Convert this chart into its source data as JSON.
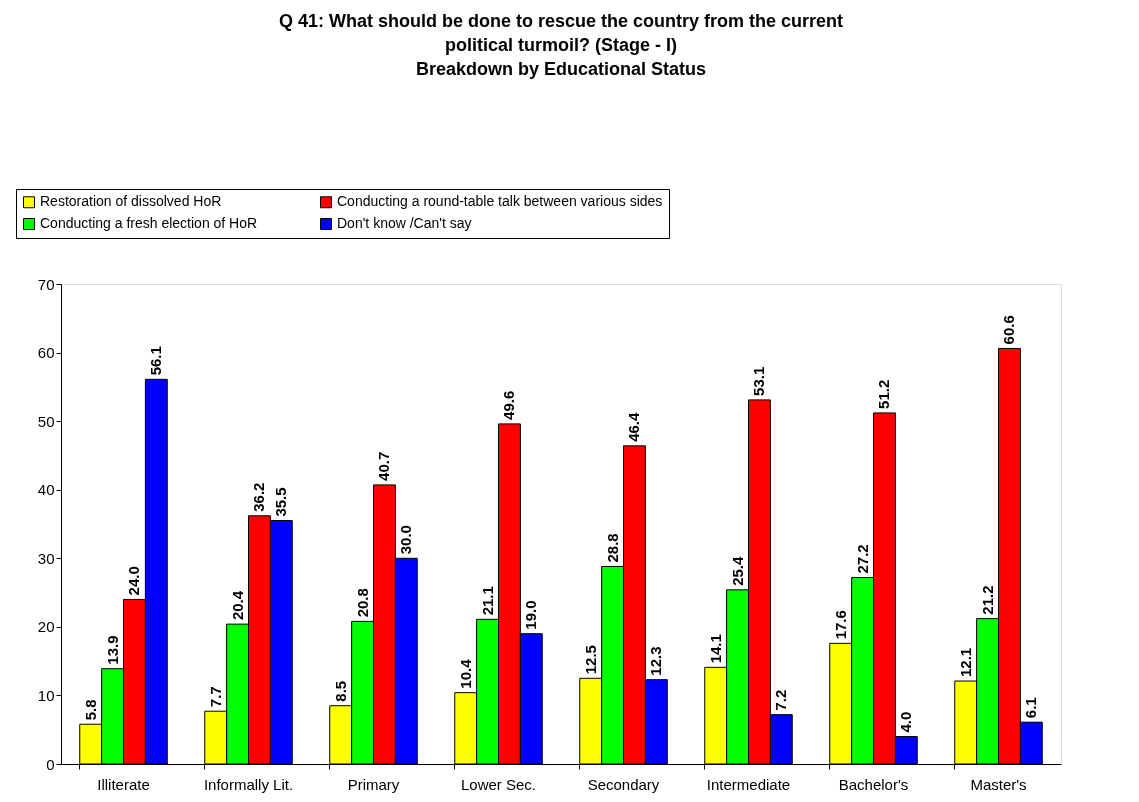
{
  "chart_data": {
    "type": "bar",
    "title": [
      "Q 41: What should be done to rescue the country from the current",
      "political turmoil? (Stage - I)",
      "Breakdown by Educational Status"
    ],
    "categories": [
      "Illiterate",
      "Informally Lit.",
      "Primary",
      "Lower Sec.",
      "Secondary",
      "Intermediate",
      "Bachelor's",
      "Master's"
    ],
    "series": [
      {
        "name": "Restoration of dissolved HoR",
        "color": "#ffff00",
        "values": [
          5.8,
          7.7,
          8.5,
          10.4,
          12.5,
          14.1,
          17.6,
          12.1
        ],
        "value_labels": [
          "5.8",
          "7.7",
          "8.5",
          "10.4",
          "12.5",
          "14.1",
          "17.6",
          "12.1"
        ]
      },
      {
        "name": "Conducting a fresh election of HoR",
        "color": "#00ff00",
        "values": [
          13.9,
          20.4,
          20.8,
          21.1,
          28.8,
          25.4,
          27.2,
          21.2
        ],
        "value_labels": [
          "13.9",
          "20.4",
          "20.8",
          "21.1",
          "28.8",
          "25.4",
          "27.2",
          "21.2"
        ]
      },
      {
        "name": "Conducting a round-table talk between various sides",
        "color": "#ff0000",
        "values": [
          24.0,
          36.2,
          40.7,
          49.6,
          46.4,
          53.1,
          51.2,
          60.6
        ],
        "value_labels": [
          "24.0",
          "36.2",
          "40.7",
          "49.6",
          "46.4",
          "53.1",
          "51.2",
          "60.6"
        ]
      },
      {
        "name": "Don't know /Can't say",
        "color": "#0000ff",
        "values": [
          56.1,
          35.5,
          30.0,
          19.0,
          12.3,
          7.2,
          4.0,
          6.1
        ],
        "value_labels": [
          "56.1",
          "35.5",
          "30.0",
          "19.0",
          "12.3",
          "7.2",
          "4.0",
          "6.1"
        ]
      }
    ],
    "ylim": [
      0,
      70
    ],
    "yticks": [
      0,
      10,
      20,
      30,
      40,
      50,
      60,
      70
    ],
    "grid": false,
    "legend": "top"
  }
}
